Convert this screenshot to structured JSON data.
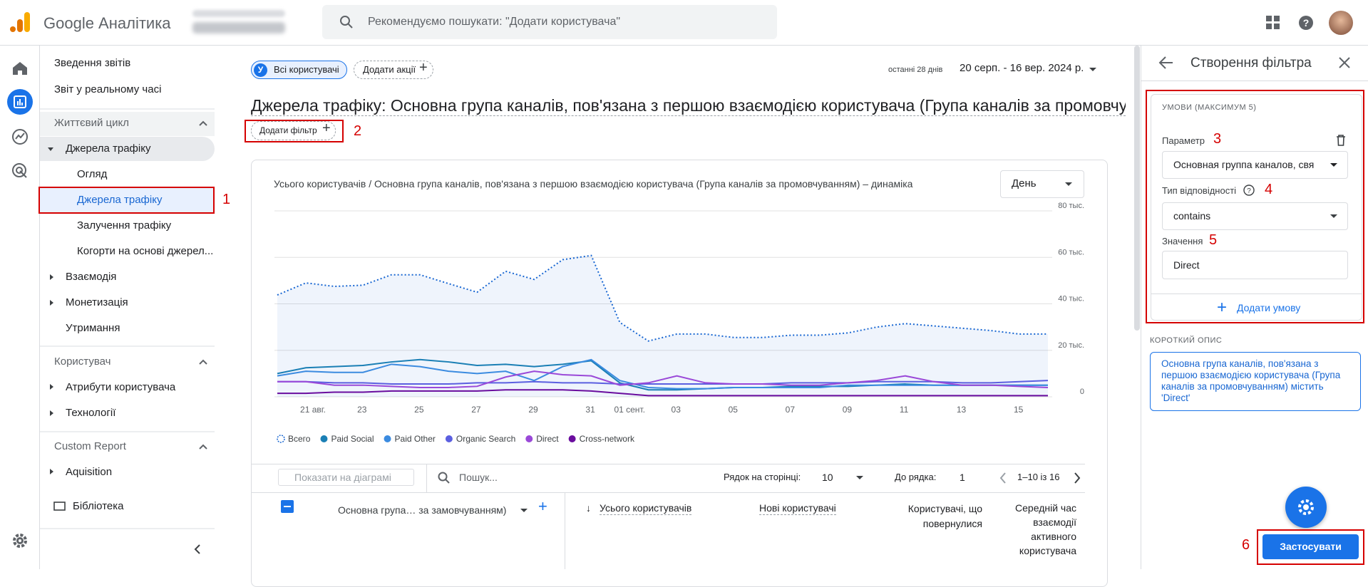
{
  "header": {
    "product": "Google Аналітика",
    "search_placeholder": "Рекомендуємо пошукати: \"Додати користувача\""
  },
  "nav": {
    "items": [
      "Зведення звітів",
      "Звіт у реальному часі",
      "Життєвий цикл",
      "Джерела трафіку",
      "Огляд",
      "Джерела трафіку",
      "Залучення трафіку",
      "Когорти на основі джерел...",
      "Взаємодія",
      "Монетизація",
      "Утримання",
      "Користувач",
      "Атрибути користувача",
      "Технології",
      "Custom Report",
      "Aquisition",
      "Бібліотека"
    ]
  },
  "annotations": [
    "1",
    "2",
    "3",
    "4",
    "5",
    "6"
  ],
  "main": {
    "segment_avatar": "У",
    "segment": "Всі користувачі",
    "add_comparison": "Додати акції",
    "date_label": "останні 28 днів",
    "date_range": "20 серп. - 16 вер. 2024 р.",
    "title": "Джерела трафіку: Основна група каналів, пов'язана з першою взаємодією користувача (Група каналів за промовчуванням)",
    "add_filter": "Додати фільтр"
  },
  "chart": {
    "type": "line",
    "title": "Усього користувачів / Основна група каналів, пов'язана з першою взаємодією користувача (Група каналів за промовчуванням) – динаміка",
    "interval": "День",
    "categories": [
      null,
      "21 авг.",
      null,
      "23",
      null,
      "25",
      null,
      "27",
      null,
      "29",
      null,
      "31",
      "01 сент.",
      null,
      "03",
      null,
      "05",
      null,
      "07",
      null,
      "09",
      null,
      "11",
      null,
      "13",
      null,
      "15",
      null
    ],
    "ylim": [
      0,
      80000
    ],
    "yticks": [
      0,
      {
        "value": 20000,
        "label": "20 тыс."
      },
      {
        "value": 40000,
        "label": "40 тыс."
      },
      {
        "value": 60000,
        "label": "60 тыс."
      },
      {
        "value": 80000,
        "label": "80 тыс."
      }
    ],
    "grid": true,
    "series": [
      {
        "name": "Всего",
        "color": "#1967d2",
        "line_style": "dotted",
        "values": [
          43800,
          49000,
          47500,
          48000,
          52500,
          52500,
          48700,
          45000,
          54000,
          50500,
          59000,
          60800,
          32000,
          24000,
          27000,
          27000,
          25500,
          25500,
          26500,
          26500,
          27500,
          30000,
          31500,
          30500,
          29500,
          28500,
          27000,
          27000
        ]
      },
      {
        "name": "Paid Social",
        "color": "#1a7fb5",
        "values": [
          10000,
          12500,
          13000,
          13500,
          15000,
          16000,
          15000,
          13500,
          14000,
          13000,
          14000,
          15500,
          6000,
          3000,
          3000,
          3500,
          4000,
          4000,
          4500,
          4500,
          4500,
          5000,
          5500,
          5000,
          5000,
          5000,
          5000,
          5000
        ]
      },
      {
        "name": "Paid Other",
        "color": "#3b8be0",
        "values": [
          9000,
          11000,
          10500,
          10500,
          14000,
          13000,
          11000,
          10000,
          11000,
          7000,
          13000,
          16000,
          7000,
          4000,
          3500,
          3500,
          4000,
          4000,
          4000,
          4000,
          5000,
          5000,
          5000,
          5000,
          5000,
          5000,
          5000,
          5000
        ]
      },
      {
        "name": "Organic Search",
        "color": "#5b5fe0",
        "values": [
          6500,
          6500,
          6000,
          6000,
          5500,
          5500,
          5500,
          6000,
          6000,
          6500,
          6000,
          6000,
          5500,
          5500,
          5500,
          5500,
          5500,
          5500,
          6000,
          6000,
          6000,
          6500,
          6500,
          6500,
          6000,
          6000,
          6500,
          7000
        ]
      },
      {
        "name": "Direct",
        "color": "#9a48d8",
        "values": [
          6500,
          6500,
          5000,
          5000,
          4500,
          4000,
          4000,
          4500,
          8500,
          11000,
          9500,
          9000,
          5000,
          6000,
          9000,
          6000,
          5500,
          5500,
          5000,
          5000,
          6000,
          7000,
          9000,
          6500,
          5000,
          5000,
          4500,
          4000
        ]
      },
      {
        "name": "Cross-network",
        "color": "#6a0d9e",
        "values": [
          1500,
          1500,
          2000,
          2000,
          2500,
          2500,
          2500,
          2500,
          3000,
          3000,
          3000,
          2500,
          1500,
          500,
          500,
          500,
          500,
          500,
          500,
          500,
          500,
          500,
          500,
          500,
          500,
          500,
          500,
          500
        ]
      }
    ]
  },
  "table": {
    "show_on_chart": "Показати на діаграмі",
    "search": "Пошук...",
    "rows_per_page_label": "Рядок на сторінці:",
    "rows_per_page": "10",
    "go_to_row_label": "До рядка:",
    "go_to_row": "1",
    "pagination": "1–10 із 16",
    "dimension_header": "Основна група… за замовчуванням)",
    "columns": [
      "Усього користувачів",
      "Нові користувачі",
      "Користувачі, що повернулися",
      "Середній час взаємодії активного користувача"
    ]
  },
  "panel": {
    "title": "Створення фільтра",
    "conditions_header": "УМОВИ (МАКСИМУМ 5)",
    "parameter_label": "Параметр",
    "parameter_value": "Основная группа каналов, свя",
    "match_type_label": "Тип відповідності",
    "match_type_value": "contains",
    "value_label": "Значення",
    "value": "Direct",
    "add_condition": "Додати умову",
    "summary_header": "КОРОТКИЙ ОПИС",
    "summary": "Основна група каналів, пов'язана з першою взаємодією користувача (Група каналів за промовчуванням) містить 'Direct'",
    "apply": "Застосувати"
  }
}
